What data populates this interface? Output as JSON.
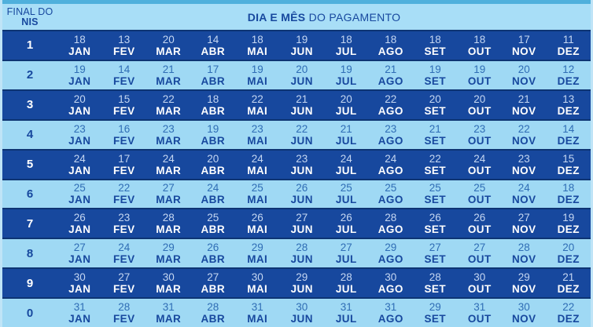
{
  "header": {
    "nis_line1": "FINAL DO",
    "nis_line2": "NIS",
    "title_bold": "DIA E MÊS",
    "title_rest": " DO PAGAMENTO"
  },
  "colors": {
    "top_strip": "#4FB0DC",
    "edge": "#BFE4F7",
    "header_bg": "#A8DEF7",
    "header_text": "#17489E",
    "dark_row_bg": "#17489E",
    "dark_row_border": "#0D3473",
    "dark_day_text": "#C5D7F2",
    "dark_month_text": "#FFFFFF",
    "light_row_bg": "#9FD9F4",
    "light_day_text": "#2F6DB5",
    "light_month_text": "#17489E"
  },
  "chart_data": {
    "type": "table",
    "title": "DIA E MÊS DO PAGAMENTO",
    "row_header": "FINAL DO NIS",
    "columns": [
      "JAN",
      "FEV",
      "MAR",
      "ABR",
      "MAI",
      "JUN",
      "JUL",
      "AGO",
      "SET",
      "OUT",
      "NOV",
      "DEZ"
    ],
    "rows": [
      {
        "nis": "1",
        "days": [
          18,
          13,
          20,
          14,
          18,
          19,
          18,
          18,
          18,
          18,
          17,
          11
        ]
      },
      {
        "nis": "2",
        "days": [
          19,
          14,
          21,
          17,
          19,
          20,
          19,
          21,
          19,
          19,
          20,
          12
        ]
      },
      {
        "nis": "3",
        "days": [
          20,
          15,
          22,
          18,
          22,
          21,
          20,
          22,
          20,
          20,
          21,
          13
        ]
      },
      {
        "nis": "4",
        "days": [
          23,
          16,
          23,
          19,
          23,
          22,
          21,
          23,
          21,
          23,
          22,
          14
        ]
      },
      {
        "nis": "5",
        "days": [
          24,
          17,
          24,
          20,
          24,
          23,
          24,
          24,
          22,
          24,
          23,
          15
        ]
      },
      {
        "nis": "6",
        "days": [
          25,
          22,
          27,
          24,
          25,
          26,
          25,
          25,
          25,
          25,
          24,
          18
        ]
      },
      {
        "nis": "7",
        "days": [
          26,
          23,
          28,
          25,
          26,
          27,
          26,
          28,
          26,
          26,
          27,
          19
        ]
      },
      {
        "nis": "8",
        "days": [
          27,
          24,
          29,
          26,
          29,
          28,
          27,
          29,
          27,
          27,
          28,
          20
        ]
      },
      {
        "nis": "9",
        "days": [
          30,
          27,
          30,
          27,
          30,
          29,
          28,
          30,
          28,
          30,
          29,
          21
        ]
      },
      {
        "nis": "0",
        "days": [
          31,
          28,
          31,
          28,
          31,
          30,
          31,
          31,
          29,
          31,
          30,
          22
        ]
      }
    ]
  }
}
